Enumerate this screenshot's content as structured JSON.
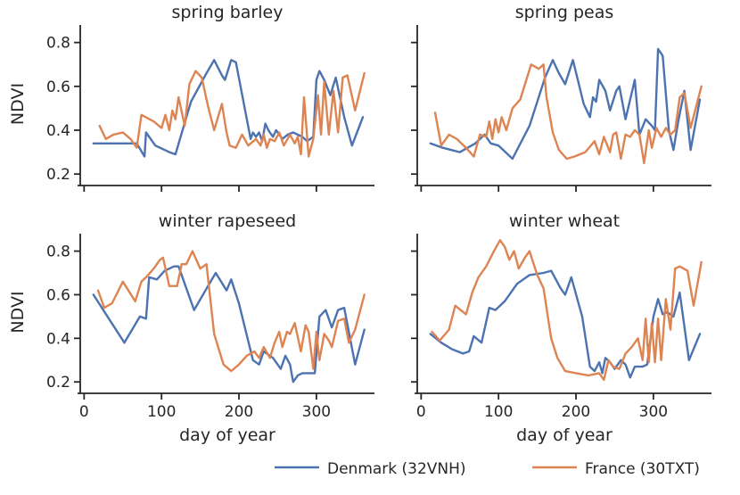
{
  "chart_data": {
    "type": "line",
    "ylabel": "NDVI",
    "xlabel": "day of year",
    "xlim": [
      -5,
      375
    ],
    "ylim": [
      0.16,
      0.88
    ],
    "xticks": [
      0,
      100,
      200,
      300
    ],
    "yticks": [
      0.2,
      0.4,
      0.6,
      0.8
    ],
    "ytick_labels": [
      "0.2",
      "0.4",
      "0.6",
      "0.8"
    ],
    "legend_placement": "bottom-right",
    "colors": {
      "denmark": "#4c72b0",
      "france": "#dd8452"
    },
    "legend": [
      "Denmark (32VNH)",
      "France (30TXT)"
    ],
    "panels": [
      {
        "title": "spring barley",
        "series": [
          {
            "name": "Denmark (32VNH)",
            "x": [
              12,
              30,
              50,
              68,
              78,
              80,
              92,
              110,
              118,
              138,
              158,
              168,
              178,
              182,
              190,
              196,
              215,
              218,
              222,
              226,
              230,
              234,
              238,
              244,
              248,
              256,
              263,
              270,
              282,
              288,
              296,
              300,
              304,
              310,
              318,
              325,
              336,
              346,
              360
            ],
            "y": [
              0.34,
              0.34,
              0.34,
              0.34,
              0.28,
              0.39,
              0.33,
              0.3,
              0.29,
              0.53,
              0.66,
              0.72,
              0.65,
              0.63,
              0.72,
              0.71,
              0.36,
              0.39,
              0.37,
              0.39,
              0.35,
              0.43,
              0.4,
              0.37,
              0.4,
              0.36,
              0.38,
              0.39,
              0.37,
              0.35,
              0.37,
              0.63,
              0.67,
              0.63,
              0.56,
              0.64,
              0.46,
              0.33,
              0.46
            ]
          },
          {
            "name": "France (30TXT)",
            "x": [
              20,
              28,
              38,
              50,
              60,
              68,
              74,
              90,
              100,
              105,
              110,
              114,
              118,
              122,
              130,
              136,
              144,
              152,
              160,
              168,
              178,
              184,
              188,
              196,
              204,
              212,
              222,
              228,
              232,
              236,
              240,
              246,
              252,
              258,
              266,
              272,
              276,
              280,
              284,
              290,
              296,
              302,
              306,
              310,
              316,
              322,
              328,
              334,
              340,
              350,
              362
            ],
            "y": [
              0.42,
              0.36,
              0.38,
              0.39,
              0.36,
              0.32,
              0.47,
              0.44,
              0.41,
              0.47,
              0.4,
              0.49,
              0.45,
              0.55,
              0.42,
              0.61,
              0.67,
              0.64,
              0.51,
              0.4,
              0.52,
              0.39,
              0.33,
              0.32,
              0.38,
              0.33,
              0.36,
              0.33,
              0.38,
              0.32,
              0.36,
              0.35,
              0.39,
              0.33,
              0.38,
              0.34,
              0.37,
              0.29,
              0.55,
              0.28,
              0.36,
              0.56,
              0.38,
              0.62,
              0.38,
              0.58,
              0.39,
              0.64,
              0.65,
              0.49,
              0.66
            ]
          }
        ]
      },
      {
        "title": "spring peas",
        "series": [
          {
            "name": "Denmark (32VNH)",
            "x": [
              12,
              28,
              50,
              70,
              82,
              90,
              100,
              118,
              140,
              160,
              170,
              178,
              186,
              196,
              210,
              218,
              222,
              226,
              230,
              238,
              244,
              252,
              256,
              264,
              276,
              282,
              290,
              298,
              302,
              306,
              312,
              320,
              326,
              332,
              340,
              348,
              360
            ],
            "y": [
              0.34,
              0.32,
              0.3,
              0.34,
              0.38,
              0.34,
              0.33,
              0.27,
              0.42,
              0.64,
              0.72,
              0.66,
              0.61,
              0.72,
              0.52,
              0.46,
              0.55,
              0.53,
              0.63,
              0.58,
              0.49,
              0.58,
              0.6,
              0.45,
              0.63,
              0.38,
              0.45,
              0.42,
              0.4,
              0.77,
              0.74,
              0.4,
              0.31,
              0.44,
              0.58,
              0.31,
              0.54
            ]
          },
          {
            "name": "France (30TXT)",
            "x": [
              18,
              26,
              36,
              46,
              58,
              68,
              76,
              84,
              88,
              92,
              96,
              100,
              104,
              110,
              118,
              128,
              142,
              152,
              158,
              162,
              170,
              178,
              188,
              198,
              212,
              224,
              230,
              236,
              244,
              248,
              252,
              258,
              264,
              270,
              276,
              282,
              288,
              294,
              298,
              304,
              310,
              316,
              322,
              328,
              334,
              340,
              348,
              362
            ],
            "y": [
              0.48,
              0.33,
              0.38,
              0.36,
              0.32,
              0.28,
              0.38,
              0.37,
              0.44,
              0.36,
              0.45,
              0.39,
              0.46,
              0.4,
              0.5,
              0.54,
              0.7,
              0.68,
              0.7,
              0.55,
              0.39,
              0.31,
              0.27,
              0.28,
              0.3,
              0.35,
              0.29,
              0.37,
              0.3,
              0.38,
              0.39,
              0.27,
              0.38,
              0.37,
              0.4,
              0.38,
              0.25,
              0.4,
              0.32,
              0.41,
              0.37,
              0.41,
              0.38,
              0.4,
              0.55,
              0.57,
              0.41,
              0.6
            ]
          }
        ]
      },
      {
        "title": "winter rapeseed",
        "series": [
          {
            "name": "Denmark (32VNH)",
            "x": [
              12,
              32,
              52,
              72,
              80,
              84,
              94,
              104,
              116,
              122,
              130,
              142,
              160,
              170,
              184,
              190,
              200,
              218,
              226,
              232,
              244,
              254,
              260,
              266,
              270,
              276,
              282,
              292,
              296,
              298,
              304,
              312,
              320,
              328,
              336,
              350,
              362
            ],
            "y": [
              0.6,
              0.49,
              0.38,
              0.5,
              0.49,
              0.68,
              0.67,
              0.71,
              0.73,
              0.73,
              0.65,
              0.53,
              0.64,
              0.7,
              0.62,
              0.67,
              0.56,
              0.3,
              0.28,
              0.34,
              0.31,
              0.26,
              0.32,
              0.28,
              0.2,
              0.23,
              0.24,
              0.24,
              0.24,
              0.24,
              0.5,
              0.53,
              0.45,
              0.53,
              0.54,
              0.28,
              0.44
            ]
          },
          {
            "name": "France (30TXT)",
            "x": [
              18,
              26,
              36,
              50,
              66,
              74,
              80,
              90,
              98,
              102,
              110,
              120,
              126,
              132,
              140,
              150,
              158,
              168,
              180,
              190,
              200,
              210,
              220,
              226,
              232,
              240,
              246,
              252,
              256,
              262,
              266,
              272,
              280,
              286,
              290,
              296,
              300,
              304,
              310,
              316,
              320,
              328,
              336,
              342,
              350,
              362
            ],
            "y": [
              0.62,
              0.54,
              0.56,
              0.66,
              0.57,
              0.66,
              0.68,
              0.72,
              0.76,
              0.77,
              0.64,
              0.64,
              0.74,
              0.74,
              0.8,
              0.72,
              0.74,
              0.42,
              0.28,
              0.25,
              0.28,
              0.32,
              0.34,
              0.31,
              0.36,
              0.31,
              0.38,
              0.43,
              0.36,
              0.43,
              0.42,
              0.47,
              0.34,
              0.46,
              0.43,
              0.26,
              0.43,
              0.3,
              0.42,
              0.39,
              0.36,
              0.48,
              0.49,
              0.38,
              0.44,
              0.6
            ]
          }
        ]
      },
      {
        "title": "winter wheat",
        "series": [
          {
            "name": "Denmark (32VNH)",
            "x": [
              12,
              26,
              40,
              54,
              62,
              68,
              78,
              88,
              96,
              108,
              124,
              140,
              158,
              168,
              180,
              186,
              194,
              208,
              218,
              224,
              230,
              234,
              238,
              244,
              250,
              258,
              264,
              270,
              276,
              286,
              292,
              300,
              306,
              312,
              318,
              326,
              334,
              346,
              360
            ],
            "y": [
              0.42,
              0.38,
              0.35,
              0.33,
              0.34,
              0.41,
              0.38,
              0.54,
              0.53,
              0.57,
              0.65,
              0.69,
              0.7,
              0.71,
              0.63,
              0.6,
              0.68,
              0.5,
              0.27,
              0.25,
              0.29,
              0.24,
              0.31,
              0.29,
              0.26,
              0.3,
              0.28,
              0.22,
              0.27,
              0.27,
              0.28,
              0.5,
              0.58,
              0.51,
              0.52,
              0.5,
              0.61,
              0.3,
              0.42
            ]
          },
          {
            "name": "France (30TXT)",
            "x": [
              14,
              24,
              36,
              44,
              58,
              66,
              74,
              84,
              94,
              102,
              108,
              114,
              120,
              126,
              134,
              140,
              150,
              158,
              168,
              176,
              186,
              200,
              216,
              230,
              236,
              242,
              248,
              256,
              264,
              272,
              280,
              286,
              290,
              294,
              298,
              302,
              306,
              310,
              316,
              322,
              328,
              334,
              344,
              352,
              362
            ],
            "y": [
              0.43,
              0.39,
              0.44,
              0.55,
              0.51,
              0.61,
              0.68,
              0.73,
              0.8,
              0.85,
              0.82,
              0.76,
              0.8,
              0.72,
              0.77,
              0.8,
              0.69,
              0.63,
              0.4,
              0.31,
              0.25,
              0.24,
              0.23,
              0.24,
              0.21,
              0.3,
              0.27,
              0.26,
              0.33,
              0.36,
              0.4,
              0.3,
              0.49,
              0.29,
              0.47,
              0.29,
              0.49,
              0.3,
              0.58,
              0.44,
              0.72,
              0.73,
              0.71,
              0.55,
              0.75
            ]
          }
        ]
      }
    ]
  }
}
